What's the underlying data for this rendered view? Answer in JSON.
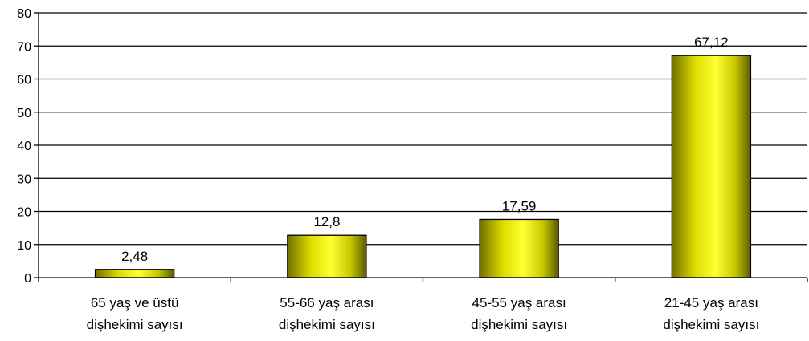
{
  "chart_data": {
    "type": "bar",
    "title": "",
    "xlabel": "",
    "ylabel": "",
    "ylim": [
      0,
      80
    ],
    "yticks": [
      "0",
      "10",
      "20",
      "30",
      "40",
      "50",
      "60",
      "70",
      "80"
    ],
    "grid": true,
    "legend": "none",
    "categories": [
      [
        "65 yaş ve üstü",
        "dişhekimi sayısı"
      ],
      [
        "55-66 yaş arası",
        "dişhekimi sayısı"
      ],
      [
        "45-55 yaş arası",
        "dişhekimi sayısı"
      ],
      [
        "21-45 yaş arası",
        "dişhekimi sayısı"
      ]
    ],
    "values": [
      2.48,
      12.8,
      17.59,
      67.12
    ],
    "data_labels": [
      "2,48",
      "12,8",
      "17,59",
      "67,12"
    ],
    "colors": {
      "bar_light": "#ffff33",
      "bar_mid": "#dede00",
      "bar_dark": "#6f6f00",
      "grid": "#000000"
    }
  }
}
